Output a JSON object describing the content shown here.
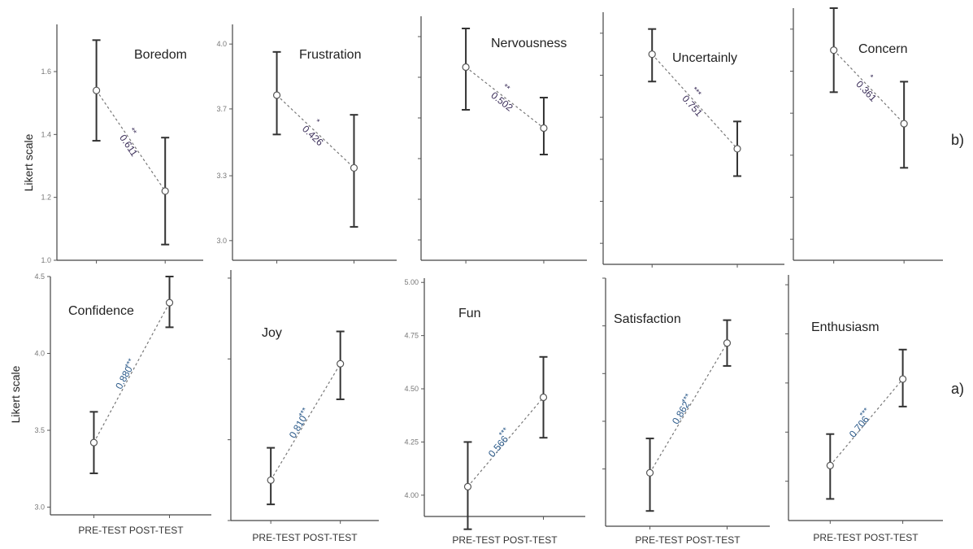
{
  "figure": {
    "row_labels": {
      "top": "b)",
      "bottom": "a)"
    },
    "ylabel": "Likert scale"
  },
  "chart_data": [
    {
      "type": "line",
      "title": "Boredom",
      "row": "top",
      "categories": [
        "PRE-TEST",
        "POST-TEST"
      ],
      "ylim": [
        1.0,
        1.75
      ],
      "yticks": [
        1.0,
        1.2,
        1.4,
        1.6
      ],
      "ytick_labels": [
        "1.0",
        "1.2",
        "1.4",
        "1.6"
      ],
      "series": [
        {
          "values": [
            1.54,
            1.22
          ],
          "ci_low": [
            1.38,
            1.05
          ],
          "ci_high": [
            1.7,
            1.39
          ]
        }
      ],
      "annotation": {
        "value": "0.611",
        "stars": "**",
        "color": "#3c2f5a"
      }
    },
    {
      "type": "line",
      "title": "Frustration",
      "row": "top",
      "categories": [
        "PRE-TEST",
        "POST-TEST"
      ],
      "ylim": [
        2.9,
        4.1
      ],
      "yticks": [
        3.0,
        3.33,
        3.67,
        4.0
      ],
      "ytick_labels": [
        "3.0",
        "3.3",
        "3.7",
        "4.0"
      ],
      "series": [
        {
          "values": [
            3.74,
            3.37
          ],
          "ci_low": [
            3.54,
            3.07
          ],
          "ci_high": [
            3.96,
            3.64
          ]
        }
      ],
      "annotation": {
        "value": "0.426",
        "stars": "*",
        "color": "#3c2f5a"
      }
    },
    {
      "type": "line",
      "title": "Nervousness",
      "row": "top",
      "categories": [
        "PRE-TEST",
        "POST-TEST"
      ],
      "ylim": [
        2.9,
        4.1
      ],
      "yticks": [
        3.0,
        3.2,
        3.4,
        3.6,
        3.8,
        4.0
      ],
      "ytick_labels": [
        "",
        "",
        "",
        "",
        "",
        ""
      ],
      "series": [
        {
          "values": [
            3.85,
            3.55
          ],
          "ci_low": [
            3.64,
            3.42
          ],
          "ci_high": [
            4.04,
            3.7
          ]
        }
      ],
      "annotation": {
        "value": "0.502",
        "stars": "**",
        "color": "#3c2f5a"
      }
    },
    {
      "type": "line",
      "title": "Uncertainly",
      "row": "top",
      "categories": [
        "PRE-TEST",
        "POST-TEST"
      ],
      "ylim": [
        2.9,
        4.1
      ],
      "yticks": [
        3.0,
        3.2,
        3.4,
        3.6,
        3.8,
        4.0
      ],
      "ytick_labels": [
        "",
        "",
        "",
        "",
        "",
        ""
      ],
      "series": [
        {
          "values": [
            3.9,
            3.45
          ],
          "ci_low": [
            3.77,
            3.32
          ],
          "ci_high": [
            4.02,
            3.58
          ]
        }
      ],
      "annotation": {
        "value": "0.751",
        "stars": "***",
        "color": "#3c2f5a"
      }
    },
    {
      "type": "line",
      "title": "Concern",
      "row": "top",
      "categories": [
        "PRE-TEST",
        "POST-TEST"
      ],
      "ylim": [
        2.9,
        4.1
      ],
      "yticks": [
        3.0,
        3.2,
        3.4,
        3.6,
        3.8,
        4.0
      ],
      "ytick_labels": [
        "",
        "",
        "",
        "",
        "",
        ""
      ],
      "series": [
        {
          "values": [
            3.9,
            3.55
          ],
          "ci_low": [
            3.7,
            3.34
          ],
          "ci_high": [
            4.1,
            3.75
          ]
        }
      ],
      "annotation": {
        "value": "0.361",
        "stars": "*",
        "color": "#3c2f5a"
      }
    },
    {
      "type": "line",
      "title": "Confidence",
      "row": "bottom",
      "categories": [
        "PRE-TEST",
        "POST-TEST"
      ],
      "ylim": [
        2.95,
        4.5
      ],
      "yticks": [
        3.0,
        3.5,
        4.0,
        4.5
      ],
      "ytick_labels": [
        "3.0",
        "3.5",
        "4.0",
        "4.5"
      ],
      "series": [
        {
          "values": [
            3.42,
            4.33
          ],
          "ci_low": [
            3.22,
            4.17
          ],
          "ci_high": [
            3.62,
            4.5
          ]
        }
      ],
      "annotation": {
        "value": "0.880",
        "stars": "***",
        "color": "#2b5a8a"
      }
    },
    {
      "type": "line",
      "title": "Joy",
      "row": "bottom",
      "categories": [
        "PRE-TEST",
        "POST-TEST"
      ],
      "ylim": [
        3.0,
        4.55
      ],
      "yticks": [
        3.0,
        3.5,
        4.0,
        4.5
      ],
      "ytick_labels": [
        "",
        "",
        "",
        ""
      ],
      "series": [
        {
          "values": [
            3.25,
            3.97
          ],
          "ci_low": [
            3.1,
            3.75
          ],
          "ci_high": [
            3.45,
            4.17
          ]
        }
      ],
      "annotation": {
        "value": "0.810",
        "stars": "***",
        "color": "#2b5a8a"
      }
    },
    {
      "type": "line",
      "title": "Fun",
      "row": "bottom",
      "categories": [
        "PRE-TEST",
        "POST-TEST"
      ],
      "ylim": [
        3.9,
        5.02
      ],
      "yticks": [
        4.0,
        4.25,
        4.5,
        4.75,
        5.0
      ],
      "ytick_labels": [
        "4.00",
        "4.25",
        "4.50",
        "4.75",
        "5.00"
      ],
      "series": [
        {
          "values": [
            4.04,
            4.46
          ],
          "ci_low": [
            3.84,
            4.27
          ],
          "ci_high": [
            4.25,
            4.65
          ]
        }
      ],
      "annotation": {
        "value": "0.566",
        "stars": "***",
        "color": "#2b5a8a"
      }
    },
    {
      "type": "line",
      "title": "Satisfaction",
      "row": "bottom",
      "categories": [
        "PRE-TEST",
        "POST-TEST"
      ],
      "ylim": [
        3.7,
        5.0
      ],
      "yticks": [
        4.0,
        4.25,
        4.5,
        4.75,
        5.0
      ],
      "ytick_labels": [
        "",
        "",
        "",
        "",
        ""
      ],
      "series": [
        {
          "values": [
            3.98,
            4.66
          ],
          "ci_low": [
            3.78,
            4.54
          ],
          "ci_high": [
            4.16,
            4.78
          ]
        }
      ],
      "annotation": {
        "value": "0.862",
        "stars": "***",
        "color": "#2b5a8a"
      }
    },
    {
      "type": "line",
      "title": "Enthusiasm",
      "row": "bottom",
      "categories": [
        "PRE-TEST",
        "POST-TEST"
      ],
      "ylim": [
        3.8,
        5.05
      ],
      "yticks": [
        4.0,
        4.25,
        4.5,
        4.75,
        5.0
      ],
      "ytick_labels": [
        "",
        "",
        "",
        "",
        ""
      ],
      "series": [
        {
          "values": [
            4.08,
            4.52
          ],
          "ci_low": [
            3.91,
            4.38
          ],
          "ci_high": [
            4.24,
            4.67
          ]
        }
      ],
      "annotation": {
        "value": "0.706",
        "stars": "***",
        "color": "#2b5a8a"
      }
    }
  ]
}
